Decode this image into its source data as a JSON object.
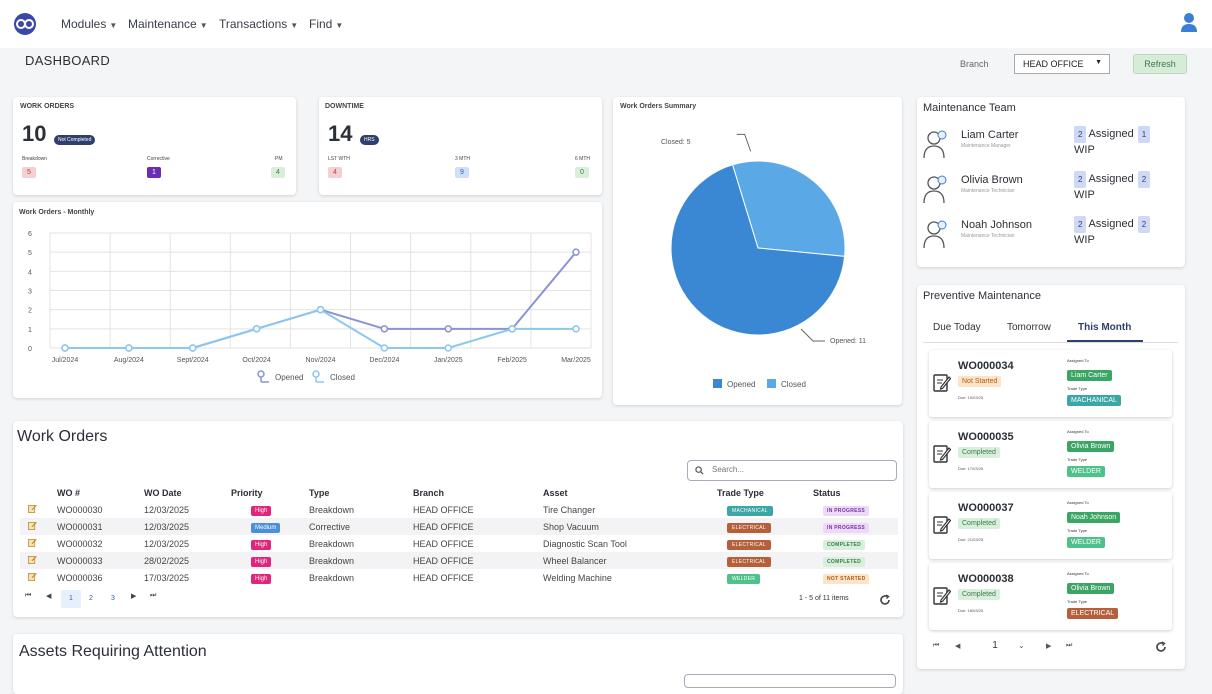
{
  "nav": {
    "items": [
      "Modules",
      "Maintenance",
      "Transactions",
      "Find"
    ]
  },
  "page_title": "DASHBOARD",
  "branch": {
    "label": "Branch",
    "selected": "HEAD OFFICE"
  },
  "refresh_label": "Refresh",
  "work_orders_card": {
    "title": "WORK ORDERS",
    "count": "10",
    "badge": "Not Completed",
    "stats": [
      {
        "label": "Breakdown",
        "value": "5",
        "color": "#f5d0d3",
        "text": "#c0392b"
      },
      {
        "label": "Corrective",
        "value": "1",
        "color": "#6c2bb5",
        "text": "#ffffff"
      },
      {
        "label": "PM",
        "value": "4",
        "color": "#d8efdc",
        "text": "#3c7a48"
      }
    ]
  },
  "downtime_card": {
    "title": "DOWNTIME",
    "count": "14",
    "badge": "HRS",
    "stats": [
      {
        "label": "LST WTH",
        "value": "4",
        "color": "#f5d0d3",
        "text": "#c0392b"
      },
      {
        "label": "3 MTH",
        "value": "9",
        "color": "#cfe0f7",
        "text": "#2b5fb3"
      },
      {
        "label": "6 MTH",
        "value": "0",
        "color": "#d8efdc",
        "text": "#3c7a48"
      }
    ]
  },
  "monthly_chart": {
    "title": "Work Orders - Monthly"
  },
  "summary_chart": {
    "title": "Work Orders Summary"
  },
  "chart_data": [
    {
      "type": "line",
      "title": "Work Orders - Monthly",
      "categories": [
        "Jul/2024",
        "Aug/2024",
        "Sept/2024",
        "Oct/2024",
        "Nov/2024",
        "Dec/2024",
        "Jan/2025",
        "Feb/2025",
        "Mar/2025"
      ],
      "series": [
        {
          "name": "Opened",
          "values": [
            0,
            0,
            0,
            1,
            2,
            1,
            1,
            1,
            5
          ],
          "color": "#8a93d6"
        },
        {
          "name": "Closed",
          "values": [
            0,
            0,
            0,
            1,
            2,
            0,
            0,
            1,
            1
          ],
          "color": "#8cc8ee"
        }
      ],
      "ylim": [
        0,
        6
      ],
      "yticks": [
        "0",
        "1",
        "2",
        "3",
        "4",
        "5",
        "6"
      ],
      "grid": true,
      "legend": "bottom"
    },
    {
      "type": "pie",
      "title": "Work Orders Summary",
      "categories": [
        "Opened",
        "Closed"
      ],
      "values": [
        11,
        5
      ],
      "colors": [
        "#3a88d4",
        "#5aa9e6"
      ],
      "data_labels": [
        "Opened: 11",
        "Closed: 5"
      ],
      "legend": "bottom"
    }
  ],
  "team": {
    "title": "Maintenance Team",
    "members": [
      {
        "name": "Liam Carter",
        "role": "Maintenance Manager",
        "assigned": "2",
        "assigned_label": "Assigned",
        "wip": "1",
        "wip_label": "WIP"
      },
      {
        "name": "Olivia Brown",
        "role": "Maintenance Technician",
        "assigned": "2",
        "assigned_label": "Assigned",
        "wip": "2",
        "wip_label": "WIP"
      },
      {
        "name": "Noah Johnson",
        "role": "Maintenance Technician",
        "assigned": "2",
        "assigned_label": "Assigned",
        "wip": "2",
        "wip_label": "WIP"
      }
    ]
  },
  "pm": {
    "title": "Preventive Maintenance",
    "tabs": [
      "Due Today",
      "Tomorrow",
      "This Month"
    ],
    "active_tab": "This Month",
    "assigned_to_label": "Assigned To",
    "trade_type_label": "Trade Type",
    "items": [
      {
        "wo": "WO000034",
        "status": "Not Started",
        "status_bg": "#fde3c8",
        "status_fg": "#b45a12",
        "due": "Due: 15/03/25",
        "assignee": "Liam Carter",
        "trade": "MACHANICAL",
        "trade_color": "#3aa6a6"
      },
      {
        "wo": "WO000035",
        "status": "Completed",
        "status_bg": "#d8efdc",
        "status_fg": "#3c7a48",
        "due": "Due: 17/03/25",
        "assignee": "Olivia Brown",
        "trade": "WELDER",
        "trade_color": "#4fc18a"
      },
      {
        "wo": "WO000037",
        "status": "Completed",
        "status_bg": "#d8efdc",
        "status_fg": "#3c7a48",
        "due": "Due: 21/03/25",
        "assignee": "Noah Johnson",
        "trade": "WELDER",
        "trade_color": "#4fc18a"
      },
      {
        "wo": "WO000038",
        "status": "Completed",
        "status_bg": "#d8efdc",
        "status_fg": "#3c7a48",
        "due": "Due: 18/03/25",
        "assignee": "Olivia Brown",
        "trade": "ELECTRICAL",
        "trade_color": "#b5603a"
      }
    ],
    "pager_value": "1"
  },
  "work_orders": {
    "title": "Work Orders",
    "search_placeholder": "Search...",
    "columns": [
      "WO #",
      "WO Date",
      "Priority",
      "Type",
      "Branch",
      "Asset",
      "Trade Type",
      "Status"
    ],
    "rows": [
      {
        "wo": "WO000030",
        "date": "12/03/2025",
        "priority": "High",
        "priority_color": "#e0257a",
        "type": "Breakdown",
        "branch": "HEAD OFFICE",
        "asset": "Tire Changer",
        "trade": "MACHANICAL",
        "trade_color": "#3aa6a6",
        "status": "IN PROGRESS",
        "status_bg": "#ecd9f5",
        "status_fg": "#7a2fa3"
      },
      {
        "wo": "WO000031",
        "date": "12/03/2025",
        "priority": "Medium",
        "priority_color": "#4a90d9",
        "type": "Corrective",
        "branch": "HEAD OFFICE",
        "asset": "Shop Vacuum",
        "trade": "ELECTRICAL",
        "trade_color": "#b5603a",
        "status": "IN PROGRESS",
        "status_bg": "#ecd9f5",
        "status_fg": "#7a2fa3"
      },
      {
        "wo": "WO000032",
        "date": "12/03/2025",
        "priority": "High",
        "priority_color": "#e0257a",
        "type": "Breakdown",
        "branch": "HEAD OFFICE",
        "asset": "Diagnostic Scan Tool",
        "trade": "ELECTRICAL",
        "trade_color": "#b5603a",
        "status": "COMPLETED",
        "status_bg": "#d8efdc",
        "status_fg": "#3c7a48"
      },
      {
        "wo": "WO000033",
        "date": "28/02/2025",
        "priority": "High",
        "priority_color": "#e0257a",
        "type": "Breakdown",
        "branch": "HEAD OFFICE",
        "asset": "Wheel Balancer",
        "trade": "ELECTRICAL",
        "trade_color": "#b5603a",
        "status": "COMPLETED",
        "status_bg": "#d8efdc",
        "status_fg": "#3c7a48"
      },
      {
        "wo": "WO000036",
        "date": "17/03/2025",
        "priority": "High",
        "priority_color": "#e0257a",
        "type": "Breakdown",
        "branch": "HEAD OFFICE",
        "asset": "Welding Machine",
        "trade": "WELDER",
        "trade_color": "#4fc18a",
        "status": "NOT STARTED",
        "status_bg": "#fde3c8",
        "status_fg": "#b45a12"
      }
    ],
    "pages": [
      "1",
      "2",
      "3"
    ],
    "pager_summary": "1 - 5 of 11 items"
  },
  "assets_title": "Assets Requiring Attention"
}
